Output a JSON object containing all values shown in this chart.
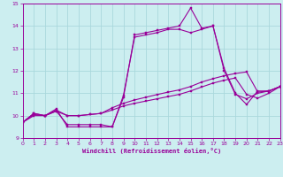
{
  "xlabel": "Windchill (Refroidissement éolien,°C)",
  "bg_color": "#cceef0",
  "grid_color": "#aad8dc",
  "line_color": "#990099",
  "xlim": [
    0,
    23
  ],
  "ylim": [
    9,
    15
  ],
  "xticks": [
    0,
    1,
    2,
    3,
    4,
    5,
    6,
    7,
    8,
    9,
    10,
    11,
    12,
    13,
    14,
    15,
    16,
    17,
    18,
    19,
    20,
    21,
    22,
    23
  ],
  "yticks": [
    9,
    10,
    11,
    12,
    13,
    14,
    15
  ],
  "curves": [
    [
      9.7,
      10.1,
      10.0,
      10.3,
      9.5,
      9.5,
      9.5,
      9.5,
      9.5,
      10.8,
      13.6,
      13.7,
      13.8,
      13.9,
      14.0,
      14.8,
      13.9,
      14.0,
      12.1,
      11.0,
      10.5,
      11.1,
      11.1,
      11.3
    ],
    [
      9.7,
      10.1,
      10.0,
      10.2,
      9.6,
      9.6,
      9.6,
      9.6,
      9.5,
      10.9,
      13.5,
      13.6,
      13.7,
      13.85,
      13.85,
      13.7,
      13.85,
      14.0,
      12.0,
      10.95,
      10.75,
      11.0,
      11.1,
      11.3
    ],
    [
      9.7,
      10.05,
      10.0,
      10.25,
      10.0,
      10.0,
      10.05,
      10.1,
      10.35,
      10.55,
      10.7,
      10.82,
      10.94,
      11.05,
      11.15,
      11.3,
      11.5,
      11.65,
      11.78,
      11.88,
      11.95,
      11.05,
      11.1,
      11.3
    ],
    [
      9.7,
      10.0,
      10.0,
      10.2,
      10.0,
      10.0,
      10.05,
      10.1,
      10.25,
      10.43,
      10.55,
      10.65,
      10.75,
      10.85,
      10.95,
      11.1,
      11.28,
      11.45,
      11.58,
      11.68,
      10.95,
      10.78,
      11.0,
      11.3
    ]
  ]
}
